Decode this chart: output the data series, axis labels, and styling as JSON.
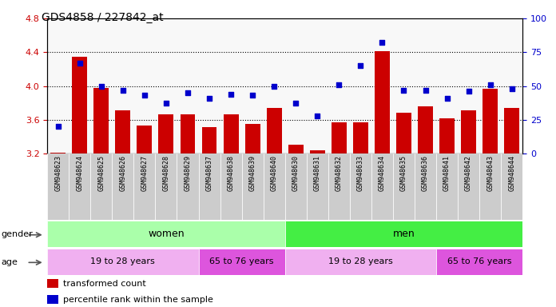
{
  "title": "GDS4858 / 227842_at",
  "samples": [
    "GSM948623",
    "GSM948624",
    "GSM948625",
    "GSM948626",
    "GSM948627",
    "GSM948628",
    "GSM948629",
    "GSM948637",
    "GSM948638",
    "GSM948639",
    "GSM948640",
    "GSM948630",
    "GSM948631",
    "GSM948632",
    "GSM948633",
    "GSM948634",
    "GSM948635",
    "GSM948636",
    "GSM948641",
    "GSM948642",
    "GSM948643",
    "GSM948644"
  ],
  "bar_values": [
    3.21,
    4.35,
    3.98,
    3.71,
    3.53,
    3.66,
    3.66,
    3.51,
    3.66,
    3.55,
    3.74,
    3.3,
    3.24,
    3.57,
    3.57,
    4.41,
    3.68,
    3.76,
    3.62,
    3.71,
    3.97,
    3.74
  ],
  "percentile_values": [
    20,
    67,
    50,
    47,
    43,
    37,
    45,
    41,
    44,
    43,
    50,
    37,
    28,
    51,
    65,
    82,
    47,
    47,
    41,
    46,
    51,
    48
  ],
  "bar_bottom": 3.2,
  "ylim_left": [
    3.2,
    4.8
  ],
  "ylim_right": [
    0,
    100
  ],
  "yticks_left": [
    3.2,
    3.6,
    4.0,
    4.4,
    4.8
  ],
  "yticks_right": [
    0,
    25,
    50,
    75,
    100
  ],
  "bar_color": "#cc0000",
  "dot_color": "#0000cc",
  "plot_bg_color": "#f8f8f8",
  "grid_lines": [
    3.6,
    4.0,
    4.4
  ],
  "gender_groups": [
    {
      "label": "women",
      "start": 0,
      "end": 11,
      "color": "#aaffaa"
    },
    {
      "label": "men",
      "start": 11,
      "end": 22,
      "color": "#44ee44"
    }
  ],
  "age_groups": [
    {
      "label": "19 to 28 years",
      "start": 0,
      "end": 7,
      "color": "#f0b0f0"
    },
    {
      "label": "65 to 76 years",
      "start": 7,
      "end": 11,
      "color": "#dd55dd"
    },
    {
      "label": "19 to 28 years",
      "start": 11,
      "end": 18,
      "color": "#f0b0f0"
    },
    {
      "label": "65 to 76 years",
      "start": 18,
      "end": 22,
      "color": "#dd55dd"
    }
  ],
  "tick_color_left": "#cc0000",
  "tick_color_right": "#0000cc",
  "xtick_bg_color": "#cccccc",
  "gender_label": "gender",
  "age_label": "age",
  "legend_items": [
    {
      "label": "transformed count",
      "color": "#cc0000"
    },
    {
      "label": "percentile rank within the sample",
      "color": "#0000cc"
    }
  ]
}
